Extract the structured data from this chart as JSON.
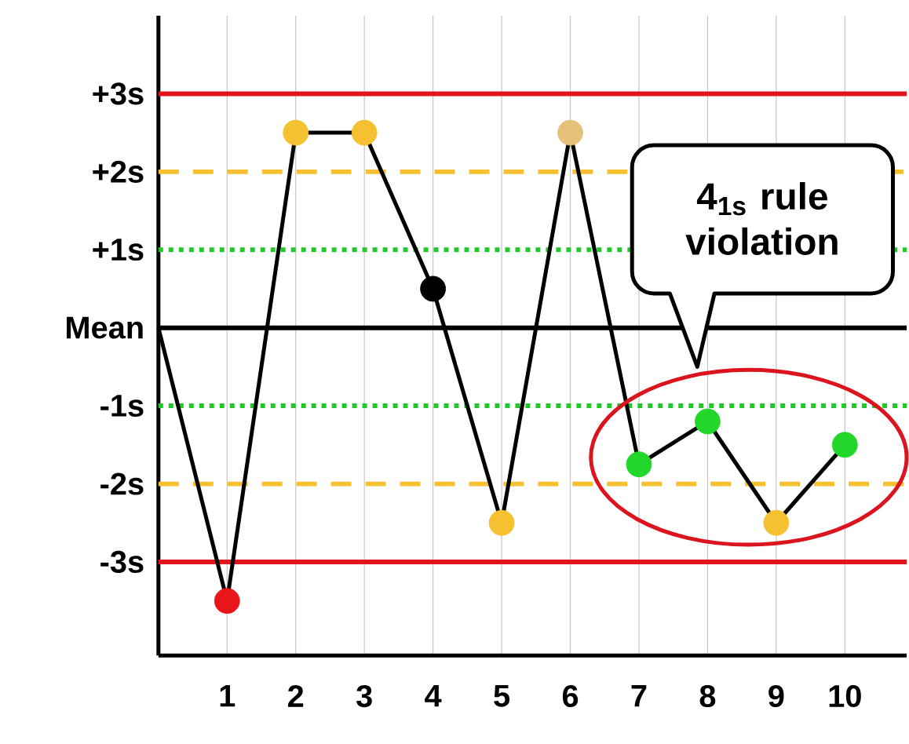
{
  "chart_data": {
    "type": "line",
    "x": [
      0,
      1,
      2,
      3,
      4,
      5,
      6,
      7,
      8,
      9,
      10
    ],
    "xlim": [
      0,
      10.9
    ],
    "xticks": [
      1,
      2,
      3,
      4,
      5,
      6,
      7,
      8,
      9,
      10
    ],
    "ylim": [
      -4.2,
      4.0
    ],
    "yticks": [
      {
        "value": 3,
        "label": "+3s"
      },
      {
        "value": 2,
        "label": "+2s"
      },
      {
        "value": 1,
        "label": "+1s"
      },
      {
        "value": 0,
        "label": "Mean"
      },
      {
        "value": -1,
        "label": "-1s"
      },
      {
        "value": -2,
        "label": "-2s"
      },
      {
        "value": -3,
        "label": "-3s"
      }
    ],
    "grid": "x",
    "marker": "circle",
    "series": [
      {
        "color": "#000000",
        "values": [
          0,
          -3.5,
          2.5,
          2.5,
          0.5,
          -2.5,
          2.5,
          -1.75,
          -1.2,
          -2.5,
          -1.5
        ],
        "colors": [
          null,
          "#e8161b",
          "#f5c130",
          "#f5c130",
          "#000000",
          "#f5c130",
          "#e6c17a",
          "#22d62a",
          "#22d62a",
          "#f5c130",
          "#22d62a"
        ]
      }
    ],
    "ref_lines": [
      {
        "axis": "y",
        "value": 3,
        "color": "#e3141b",
        "line_style": "solid"
      },
      {
        "axis": "y",
        "value": 2,
        "color": "#f5c130",
        "line_style": "dashed"
      },
      {
        "axis": "y",
        "value": 1,
        "color": "#22c72a",
        "line_style": "dotted"
      },
      {
        "axis": "y",
        "value": 0,
        "color": "#000000",
        "line_style": "solid"
      },
      {
        "axis": "y",
        "value": -1,
        "color": "#22c72a",
        "line_style": "dotted"
      },
      {
        "axis": "y",
        "value": -2,
        "color": "#f5c130",
        "line_style": "dashed"
      },
      {
        "axis": "y",
        "value": -3,
        "color": "#e3141b",
        "line_style": "solid"
      }
    ],
    "annotations": [
      "4$_{1s}$ rule violation"
    ]
  }
}
